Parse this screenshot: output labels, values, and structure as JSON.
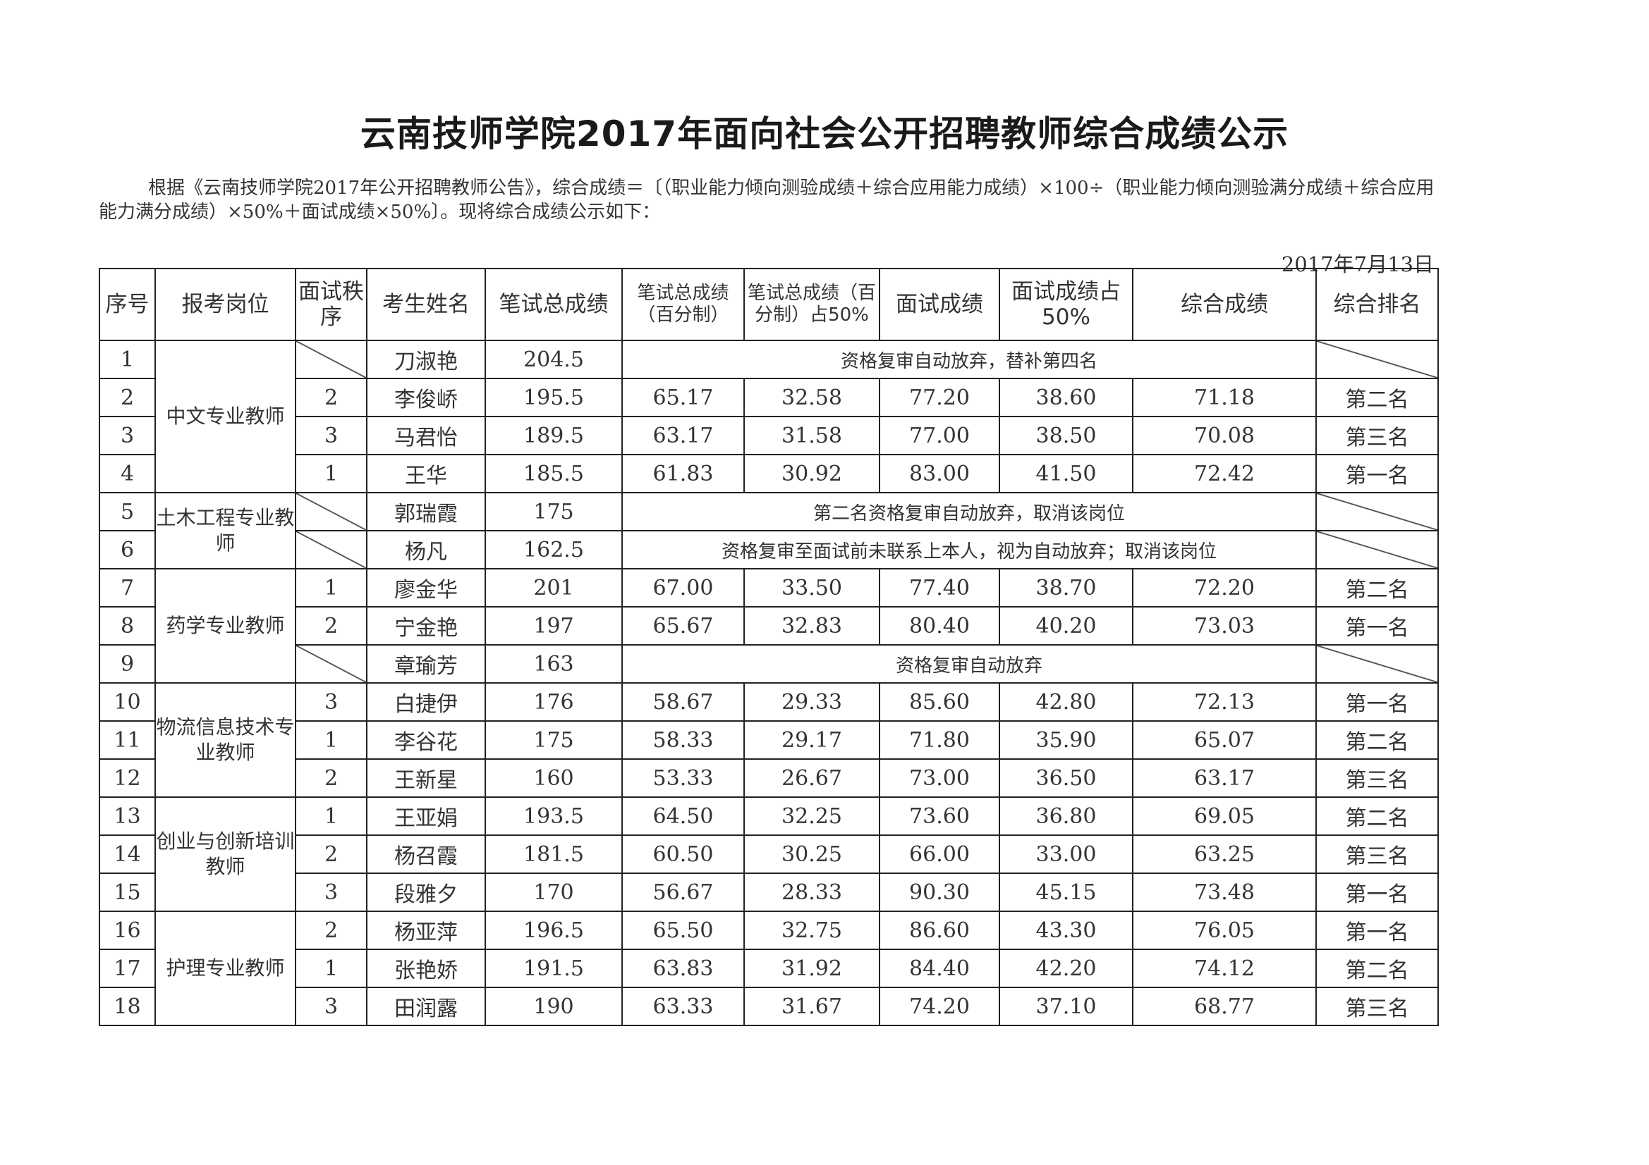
{
  "title": "云南技师学院2017年面向社会公开招聘教师综合成绩公示",
  "intro": "根据《云南技师学院2017年公开招聘教师公告》，综合成绩＝〔（职业能力倾向测验成绩＋综合应用能力成绩）×100÷（职业能力倾向测验满分成绩＋综合应用能力满分成绩）×50%＋面试成绩×50%〕。现将综合成绩公示如下：",
  "date": "2017年7月13日",
  "headers": [
    "序号",
    "报考岗位",
    "面试秩序",
    "考生姓名",
    "笔试总成绩",
    "笔试总成绩（百分制）",
    "笔试总成绩（百分制）占50%",
    "面试成绩",
    "面试成绩占50%",
    "综合成绩",
    "综合排名"
  ],
  "groups": [
    {
      "position": "中文专业教师",
      "rows": [
        {
          "no": "1",
          "order": null,
          "name": "刀淑艳",
          "written": "204.5",
          "note": "资格复审自动放弃，替补第四名"
        },
        {
          "no": "2",
          "order": "2",
          "name": "李俊峤",
          "written": "195.5",
          "pct": "65.17",
          "pct50": "32.58",
          "interview": "77.20",
          "int50": "38.60",
          "total": "71.18",
          "rank": "第二名"
        },
        {
          "no": "3",
          "order": "3",
          "name": "马君怡",
          "written": "189.5",
          "pct": "63.17",
          "pct50": "31.58",
          "interview": "77.00",
          "int50": "38.50",
          "total": "70.08",
          "rank": "第三名"
        },
        {
          "no": "4",
          "order": "1",
          "name": "王华",
          "written": "185.5",
          "pct": "61.83",
          "pct50": "30.92",
          "interview": "83.00",
          "int50": "41.50",
          "total": "72.42",
          "rank": "第一名"
        }
      ]
    },
    {
      "position": "土木工程专业教师",
      "rows": [
        {
          "no": "5",
          "order": null,
          "name": "郭瑞霞",
          "written": "175",
          "note": "第二名资格复审自动放弃，取消该岗位"
        },
        {
          "no": "6",
          "order": null,
          "name": "杨凡",
          "written": "162.5",
          "note": "资格复审至面试前未联系上本人，视为自动放弃；取消该岗位"
        }
      ]
    },
    {
      "position": "药学专业教师",
      "rows": [
        {
          "no": "7",
          "order": "1",
          "name": "廖金华",
          "written": "201",
          "pct": "67.00",
          "pct50": "33.50",
          "interview": "77.40",
          "int50": "38.70",
          "total": "72.20",
          "rank": "第二名"
        },
        {
          "no": "8",
          "order": "2",
          "name": "宁金艳",
          "written": "197",
          "pct": "65.67",
          "pct50": "32.83",
          "interview": "80.40",
          "int50": "40.20",
          "total": "73.03",
          "rank": "第一名"
        },
        {
          "no": "9",
          "order": null,
          "name": "章瑜芳",
          "written": "163",
          "note": "资格复审自动放弃"
        }
      ]
    },
    {
      "position": "物流信息技术专业教师",
      "rows": [
        {
          "no": "10",
          "order": "3",
          "name": "白捷伊",
          "written": "176",
          "pct": "58.67",
          "pct50": "29.33",
          "interview": "85.60",
          "int50": "42.80",
          "total": "72.13",
          "rank": "第一名"
        },
        {
          "no": "11",
          "order": "1",
          "name": "李谷花",
          "written": "175",
          "pct": "58.33",
          "pct50": "29.17",
          "interview": "71.80",
          "int50": "35.90",
          "total": "65.07",
          "rank": "第二名"
        },
        {
          "no": "12",
          "order": "2",
          "name": "王新星",
          "written": "160",
          "pct": "53.33",
          "pct50": "26.67",
          "interview": "73.00",
          "int50": "36.50",
          "total": "63.17",
          "rank": "第三名"
        }
      ]
    },
    {
      "position": "创业与创新培训教师",
      "rows": [
        {
          "no": "13",
          "order": "1",
          "name": "王亚娟",
          "written": "193.5",
          "pct": "64.50",
          "pct50": "32.25",
          "interview": "73.60",
          "int50": "36.80",
          "total": "69.05",
          "rank": "第二名"
        },
        {
          "no": "14",
          "order": "2",
          "name": "杨召霞",
          "written": "181.5",
          "pct": "60.50",
          "pct50": "30.25",
          "interview": "66.00",
          "int50": "33.00",
          "total": "63.25",
          "rank": "第三名"
        },
        {
          "no": "15",
          "order": "3",
          "name": "段雅夕",
          "written": "170",
          "pct": "56.67",
          "pct50": "28.33",
          "interview": "90.30",
          "int50": "45.15",
          "total": "73.48",
          "rank": "第一名"
        }
      ]
    },
    {
      "position": "护理专业教师",
      "rows": [
        {
          "no": "16",
          "order": "2",
          "name": "杨亚萍",
          "written": "196.5",
          "pct": "65.50",
          "pct50": "32.75",
          "interview": "86.60",
          "int50": "43.30",
          "total": "76.05",
          "rank": "第一名"
        },
        {
          "no": "17",
          "order": "1",
          "name": "张艳娇",
          "written": "191.5",
          "pct": "63.83",
          "pct50": "31.92",
          "interview": "84.40",
          "int50": "42.20",
          "total": "74.12",
          "rank": "第二名"
        },
        {
          "no": "18",
          "order": "3",
          "name": "田润露",
          "written": "190",
          "pct": "63.33",
          "pct50": "31.67",
          "interview": "74.20",
          "int50": "37.10",
          "total": "68.77",
          "rank": "第三名"
        }
      ]
    }
  ]
}
